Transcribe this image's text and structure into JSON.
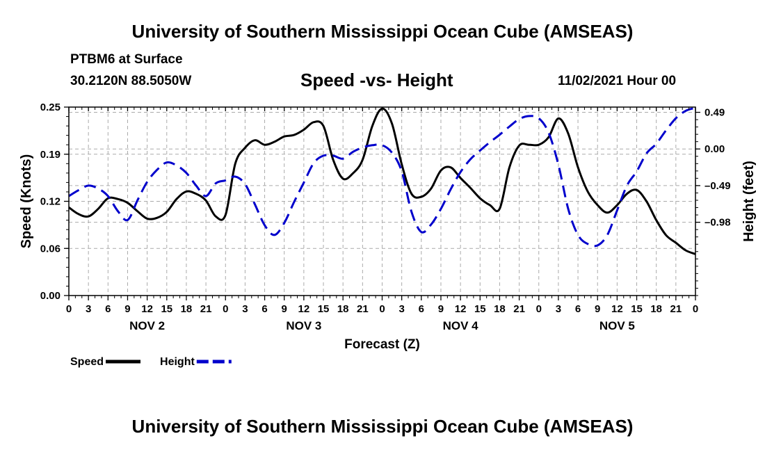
{
  "header": {
    "title": "University of Southern Mississippi Ocean Cube (AMSEAS)",
    "station": "PTBM6 at Surface",
    "coords": "30.2120N  88.5050W",
    "date": "11/02/2021 Hour 00"
  },
  "footer": {
    "title": "University of Southern Mississippi Ocean Cube (AMSEAS)"
  },
  "chart_data": {
    "type": "line",
    "title": "Speed -vs- Height",
    "xlabel": "Forecast (Z)",
    "ylabel": "Speed (Knots)",
    "y2label": "Height (feet)",
    "x_tick_labels": [
      "0",
      "3",
      "6",
      "9",
      "12",
      "15",
      "18",
      "21",
      "0",
      "3",
      "6",
      "9",
      "12",
      "15",
      "18",
      "21",
      "0",
      "3",
      "6",
      "9",
      "12",
      "15",
      "18",
      "21",
      "0",
      "3",
      "6",
      "9",
      "12",
      "15",
      "18",
      "21",
      "0"
    ],
    "day_labels": [
      {
        "label": "NOV 2",
        "hour": 12
      },
      {
        "label": "NOV 3",
        "hour": 36
      },
      {
        "label": "NOV 4",
        "hour": 60
      },
      {
        "label": "NOV 5",
        "hour": 84
      }
    ],
    "xlim": [
      0,
      96
    ],
    "ylim": [
      0,
      0.25
    ],
    "y_ticks": [
      {
        "label": "0.00",
        "value": 0.0
      },
      {
        "label": "0.06",
        "value": 0.0625
      },
      {
        "label": "0.12",
        "value": 0.125
      },
      {
        "label": "0.19",
        "value": 0.1875
      },
      {
        "label": "0.25",
        "value": 0.25
      }
    ],
    "y2lim": [
      -1.96,
      0.56
    ],
    "y2_ticks": [
      {
        "label": "0.49",
        "value": 0.49
      },
      {
        "label": "0.00",
        "value": 0.0
      },
      {
        "label": "–0.49",
        "value": -0.49
      },
      {
        "label": "–0.98",
        "value": -0.98
      }
    ],
    "series": [
      {
        "name": "Speed",
        "axis": "left",
        "color": "#000000",
        "style": "solid",
        "x": [
          0,
          1.5,
          3,
          4.5,
          6,
          7.5,
          9,
          10.5,
          12,
          13.5,
          15,
          16.5,
          18,
          19.5,
          21,
          22.5,
          24,
          25.5,
          27,
          28.5,
          30,
          31.5,
          33,
          34.5,
          36,
          37.5,
          39,
          40.5,
          42,
          43.5,
          45,
          46.5,
          48,
          49.5,
          51,
          52.5,
          54,
          55.5,
          57,
          58.5,
          60,
          61.5,
          63,
          64.5,
          66,
          67.5,
          69,
          70.5,
          72,
          73.5,
          75,
          76.5,
          78,
          79.5,
          81,
          82.5,
          84,
          85.5,
          87,
          88.5,
          90,
          91.5,
          93,
          94.5,
          96
        ],
        "values": [
          0.117,
          0.108,
          0.105,
          0.115,
          0.129,
          0.128,
          0.123,
          0.112,
          0.102,
          0.103,
          0.111,
          0.128,
          0.138,
          0.135,
          0.126,
          0.105,
          0.107,
          0.175,
          0.196,
          0.206,
          0.2,
          0.204,
          0.211,
          0.213,
          0.22,
          0.23,
          0.225,
          0.18,
          0.155,
          0.162,
          0.18,
          0.225,
          0.248,
          0.228,
          0.174,
          0.135,
          0.131,
          0.142,
          0.166,
          0.17,
          0.156,
          0.143,
          0.129,
          0.12,
          0.115,
          0.17,
          0.199,
          0.2,
          0.2,
          0.21,
          0.235,
          0.215,
          0.17,
          0.138,
          0.12,
          0.11,
          0.12,
          0.135,
          0.14,
          0.125,
          0.1,
          0.08,
          0.07,
          0.06,
          0.055
        ]
      },
      {
        "name": "Height",
        "axis": "right",
        "color": "#0000cc",
        "style": "dashed",
        "x": [
          0,
          1.5,
          3,
          4.5,
          6,
          7.5,
          9,
          10.5,
          12,
          13.5,
          15,
          16.5,
          18,
          19.5,
          21,
          22.5,
          24,
          25.5,
          27,
          28.5,
          30,
          31.5,
          33,
          34.5,
          36,
          37.5,
          39,
          40.5,
          42,
          43.5,
          45,
          46.5,
          48,
          49.5,
          51,
          52.5,
          54,
          55.5,
          57,
          58.5,
          60,
          61.5,
          63,
          64.5,
          66,
          67.5,
          69,
          70.5,
          72,
          73.5,
          75,
          76.5,
          78,
          79.5,
          81,
          82.5,
          84,
          85.5,
          87,
          88.5,
          90,
          91.5,
          93,
          94.5,
          96
        ],
        "values": [
          -0.63,
          -0.55,
          -0.49,
          -0.53,
          -0.63,
          -0.83,
          -0.95,
          -0.69,
          -0.44,
          -0.28,
          -0.18,
          -0.22,
          -0.32,
          -0.49,
          -0.63,
          -0.46,
          -0.42,
          -0.37,
          -0.47,
          -0.74,
          -1.02,
          -1.15,
          -0.99,
          -0.71,
          -0.45,
          -0.19,
          -0.09,
          -0.09,
          -0.13,
          -0.04,
          0.02,
          0.05,
          0.05,
          -0.05,
          -0.3,
          -0.84,
          -1.11,
          -1.01,
          -0.8,
          -0.54,
          -0.31,
          -0.14,
          -0.02,
          0.09,
          0.19,
          0.3,
          0.4,
          0.44,
          0.41,
          0.22,
          -0.21,
          -0.8,
          -1.15,
          -1.27,
          -1.29,
          -1.15,
          -0.82,
          -0.49,
          -0.3,
          -0.06,
          0.07,
          0.25,
          0.41,
          0.51,
          0.55
        ]
      }
    ],
    "legend": [
      {
        "label": "Speed",
        "color": "#000000",
        "style": "solid"
      },
      {
        "label": "Height",
        "color": "#0000cc",
        "style": "dashed"
      }
    ],
    "legend_position": "bottom-left",
    "grid": true
  }
}
